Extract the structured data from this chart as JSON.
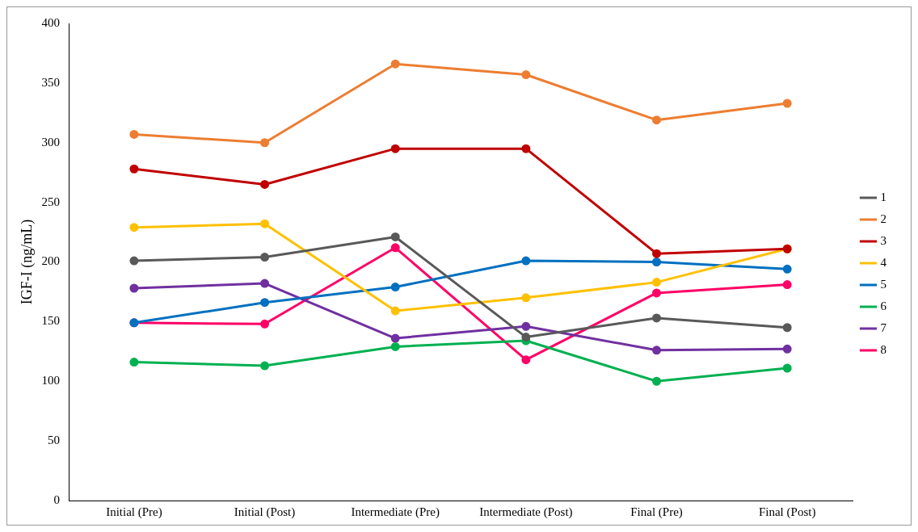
{
  "chart_data": {
    "type": "line",
    "ylabel": "IGF-I (ng/mL)",
    "categories": [
      "Initial (Pre)",
      "Initial (Post)",
      "Intermediate (Pre)",
      "Intermediate (Post)",
      "Final (Pre)",
      "Final (Post)"
    ],
    "series": [
      {
        "name": "1",
        "color": "#595959",
        "values": [
          201,
          204,
          221,
          137,
          153,
          145
        ]
      },
      {
        "name": "2",
        "color": "#ed7d31",
        "values": [
          307,
          300,
          366,
          357,
          319,
          333
        ]
      },
      {
        "name": "3",
        "color": "#c00000",
        "values": [
          278,
          265,
          295,
          295,
          207,
          211
        ]
      },
      {
        "name": "4",
        "color": "#ffc000",
        "values": [
          229,
          232,
          159,
          170,
          183,
          211
        ]
      },
      {
        "name": "5",
        "color": "#0070c0",
        "values": [
          149,
          166,
          179,
          201,
          200,
          194
        ]
      },
      {
        "name": "6",
        "color": "#00b050",
        "values": [
          116,
          113,
          129,
          134,
          100,
          111
        ]
      },
      {
        "name": "7",
        "color": "#7030a0",
        "values": [
          178,
          182,
          136,
          146,
          126,
          127
        ]
      },
      {
        "name": "8",
        "color": "#ff0066",
        "values": [
          149,
          148,
          212,
          118,
          174,
          181
        ]
      }
    ],
    "ylim": [
      0,
      400
    ],
    "yticks": [
      0,
      50,
      100,
      150,
      200,
      250,
      300,
      350,
      400
    ],
    "grid": false,
    "legend": "right",
    "marker": "circle",
    "line_style": "solid"
  }
}
